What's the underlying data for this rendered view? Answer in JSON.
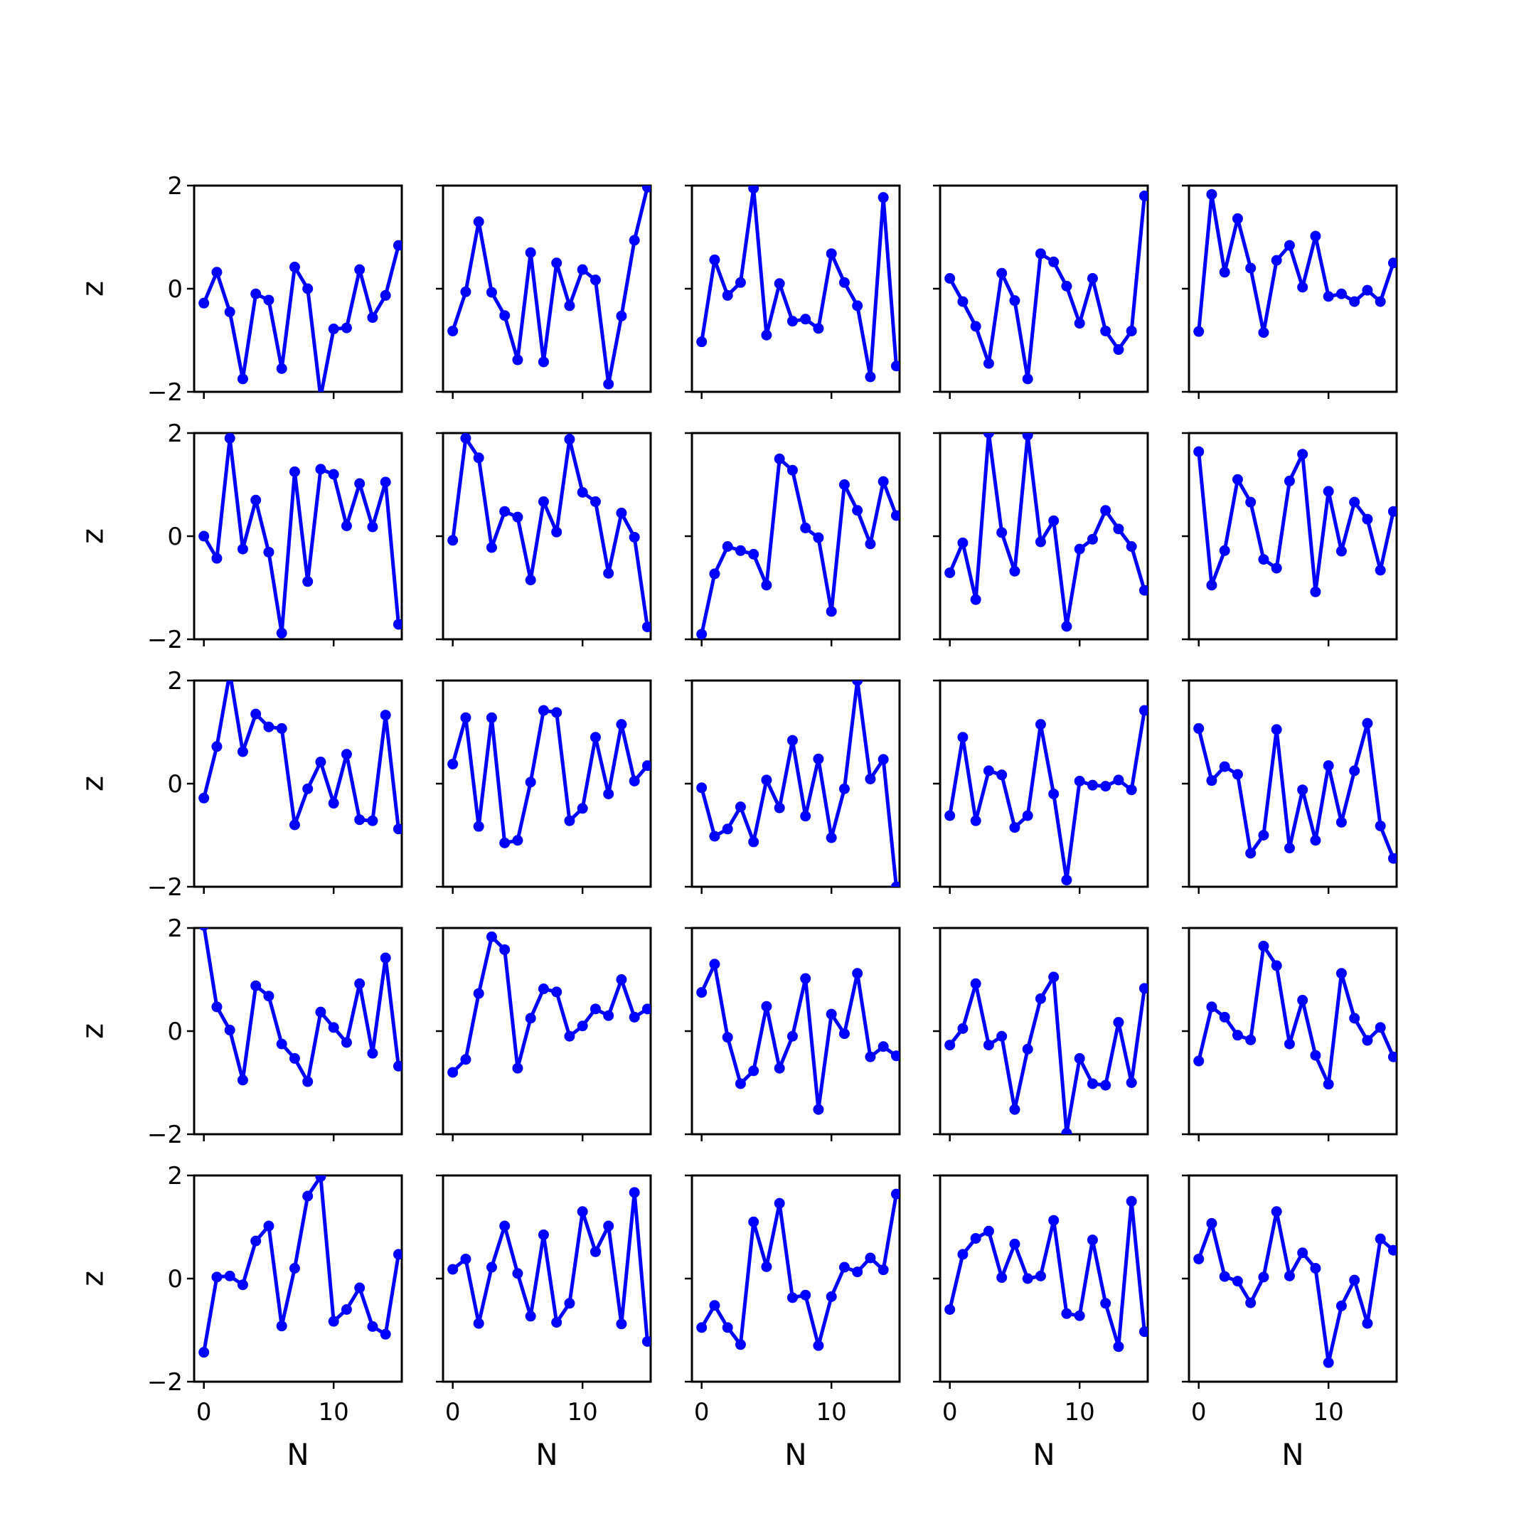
{
  "chart_data": {
    "type": "line",
    "layout": {
      "rows": 5,
      "cols": 5
    },
    "xlabel": "N",
    "ylabel": "z",
    "xlim": [
      -0.75,
      15.25
    ],
    "ylim": [
      -2,
      2
    ],
    "xticks": [
      0,
      10
    ],
    "yticks": [
      -2,
      0,
      2
    ],
    "line_color": "#0000ff",
    "marker": "circle",
    "x": [
      0,
      1,
      2,
      3,
      4,
      5,
      6,
      7,
      8,
      9,
      10,
      11,
      12,
      13,
      14,
      15
    ],
    "panels": [
      [
        -0.28,
        0.32,
        -0.45,
        -1.75,
        -0.1,
        -0.22,
        -1.55,
        0.42,
        0.0,
        -2.1,
        -0.78,
        -0.76,
        0.37,
        -0.56,
        -0.13,
        0.84
      ],
      [
        -0.82,
        -0.06,
        1.3,
        -0.07,
        -0.52,
        -1.38,
        0.7,
        -1.42,
        0.5,
        -0.33,
        0.37,
        0.17,
        -1.85,
        -0.53,
        0.94,
        1.97
      ],
      [
        -1.03,
        0.56,
        -0.13,
        0.12,
        1.95,
        -0.9,
        0.1,
        -0.63,
        -0.59,
        -0.77,
        0.68,
        0.12,
        -0.33,
        -1.71,
        1.77,
        -1.5
      ],
      [
        0.2,
        -0.25,
        -0.73,
        -1.45,
        0.3,
        -0.23,
        -1.75,
        0.68,
        0.52,
        0.05,
        -0.67,
        0.2,
        -0.82,
        -1.18,
        -0.82,
        1.8
      ],
      [
        -0.83,
        1.83,
        0.32,
        1.36,
        0.4,
        -0.85,
        0.55,
        0.84,
        0.03,
        1.02,
        -0.15,
        -0.1,
        -0.25,
        -0.03,
        -0.25,
        0.5
      ],
      [
        0.0,
        -0.43,
        1.9,
        -0.25,
        0.7,
        -0.31,
        -1.88,
        1.25,
        -0.88,
        1.3,
        1.2,
        0.2,
        1.02,
        0.18,
        1.05,
        -1.71
      ],
      [
        -0.08,
        1.9,
        1.52,
        -0.22,
        0.48,
        0.37,
        -0.85,
        0.67,
        0.08,
        1.88,
        0.85,
        0.67,
        -0.72,
        0.45,
        -0.02,
        -1.76
      ],
      [
        -1.9,
        -0.73,
        -0.2,
        -0.28,
        -0.35,
        -0.95,
        1.5,
        1.28,
        0.16,
        -0.03,
        -1.46,
        1.0,
        0.5,
        -0.15,
        1.06,
        0.4
      ],
      [
        -0.71,
        -0.13,
        -1.23,
        2.0,
        0.07,
        -0.68,
        1.96,
        -0.11,
        0.3,
        -1.75,
        -0.25,
        -0.06,
        0.5,
        0.14,
        -0.2,
        -1.05
      ],
      [
        1.64,
        -0.95,
        -0.28,
        1.1,
        0.66,
        -0.45,
        -0.62,
        1.07,
        1.59,
        -1.08,
        0.87,
        -0.29,
        0.66,
        0.33,
        -0.66,
        0.48
      ],
      [
        -0.28,
        0.72,
        2.15,
        0.62,
        1.35,
        1.1,
        1.07,
        -0.8,
        -0.1,
        0.42,
        -0.38,
        0.57,
        -0.7,
        -0.72,
        1.33,
        -0.88
      ],
      [
        0.38,
        1.28,
        -0.83,
        1.28,
        -1.15,
        -1.1,
        0.03,
        1.42,
        1.38,
        -0.72,
        -0.48,
        0.9,
        -0.2,
        1.15,
        0.05,
        0.35
      ],
      [
        -0.08,
        -1.02,
        -0.88,
        -0.45,
        -1.13,
        0.07,
        -0.47,
        0.84,
        -0.63,
        0.48,
        -1.05,
        -0.1,
        2.0,
        0.09,
        0.47,
        -2.0
      ],
      [
        -0.62,
        0.9,
        -0.72,
        0.25,
        0.17,
        -0.85,
        -0.62,
        1.15,
        -0.2,
        -1.87,
        0.05,
        -0.03,
        -0.05,
        0.07,
        -0.12,
        1.42
      ],
      [
        1.07,
        0.06,
        0.33,
        0.18,
        -1.35,
        -1.0,
        1.05,
        -1.25,
        -0.12,
        -1.1,
        0.35,
        -0.75,
        0.25,
        1.17,
        -0.82,
        -1.45
      ],
      [
        2.05,
        0.47,
        0.02,
        -0.95,
        0.88,
        0.68,
        -0.25,
        -0.53,
        -0.98,
        0.37,
        0.07,
        -0.22,
        0.92,
        -0.43,
        1.42,
        -0.68
      ],
      [
        -0.8,
        -0.55,
        0.73,
        1.83,
        1.58,
        -0.72,
        0.25,
        0.82,
        0.76,
        -0.1,
        0.1,
        0.43,
        0.3,
        1.0,
        0.27,
        0.43
      ],
      [
        0.75,
        1.3,
        -0.12,
        -1.02,
        -0.77,
        0.48,
        -0.72,
        -0.1,
        1.02,
        -1.52,
        0.33,
        -0.05,
        1.12,
        -0.5,
        -0.3,
        -0.48
      ],
      [
        -0.27,
        0.05,
        0.92,
        -0.27,
        -0.1,
        -1.52,
        -0.35,
        0.63,
        1.05,
        -1.98,
        -0.53,
        -1.02,
        -1.05,
        0.17,
        -1.0,
        0.83
      ],
      [
        -0.58,
        0.47,
        0.27,
        -0.08,
        -0.17,
        1.65,
        1.27,
        -0.25,
        0.6,
        -0.47,
        -1.03,
        1.12,
        0.25,
        -0.18,
        0.07,
        -0.5
      ],
      [
        -1.43,
        0.03,
        0.05,
        -0.12,
        0.73,
        1.02,
        -0.92,
        0.2,
        1.6,
        1.98,
        -0.83,
        -0.6,
        -0.18,
        -0.93,
        -1.08,
        0.47
      ],
      [
        0.18,
        0.38,
        -0.87,
        0.22,
        1.02,
        0.1,
        -0.73,
        0.85,
        -0.85,
        -0.48,
        1.3,
        0.52,
        1.02,
        -0.88,
        1.67,
        -1.22
      ],
      [
        -0.95,
        -0.52,
        -0.95,
        -1.28,
        1.1,
        0.23,
        1.46,
        -0.37,
        -0.32,
        -1.3,
        -0.35,
        0.22,
        0.13,
        0.4,
        0.17,
        1.64
      ],
      [
        -0.6,
        0.47,
        0.78,
        0.92,
        0.02,
        0.67,
        0.0,
        0.05,
        1.13,
        -0.68,
        -0.72,
        0.75,
        -0.48,
        -1.32,
        1.5,
        -1.03
      ],
      [
        0.38,
        1.07,
        0.04,
        -0.05,
        -0.47,
        0.03,
        1.3,
        0.05,
        0.5,
        0.2,
        -1.63,
        -0.53,
        -0.03,
        -0.87,
        0.77,
        0.55
      ]
    ]
  }
}
